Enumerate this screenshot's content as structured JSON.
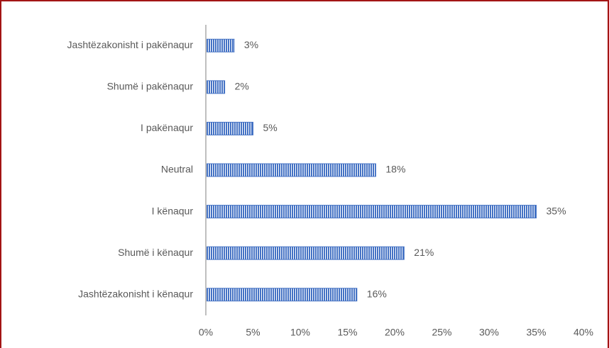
{
  "chart_data": {
    "type": "bar",
    "orientation": "horizontal",
    "categories": [
      "Jashtëzakonisht i pakënaqur",
      "Shumë i pakënaqur",
      "I pakënaqur",
      "Neutral",
      "I kënaqur",
      "Shumë i kënaqur",
      "Jashtëzakonisht i kënaqur"
    ],
    "values": [
      3,
      2,
      5,
      18,
      35,
      21,
      16
    ],
    "value_labels": [
      "3%",
      "2%",
      "5%",
      "18%",
      "35%",
      "21%",
      "16%"
    ],
    "color": "#4472c4",
    "xlim": [
      0,
      40
    ],
    "xticks": [
      {
        "value": 0,
        "label": "0%"
      },
      {
        "value": 5,
        "label": "5%"
      },
      {
        "value": 10,
        "label": "10%"
      },
      {
        "value": 15,
        "label": "15%"
      },
      {
        "value": 20,
        "label": "20%"
      },
      {
        "value": 25,
        "label": "25%"
      },
      {
        "value": 30,
        "label": "30%"
      },
      {
        "value": 35,
        "label": "35%"
      },
      {
        "value": 40,
        "label": "40%"
      }
    ],
    "grid": false
  }
}
